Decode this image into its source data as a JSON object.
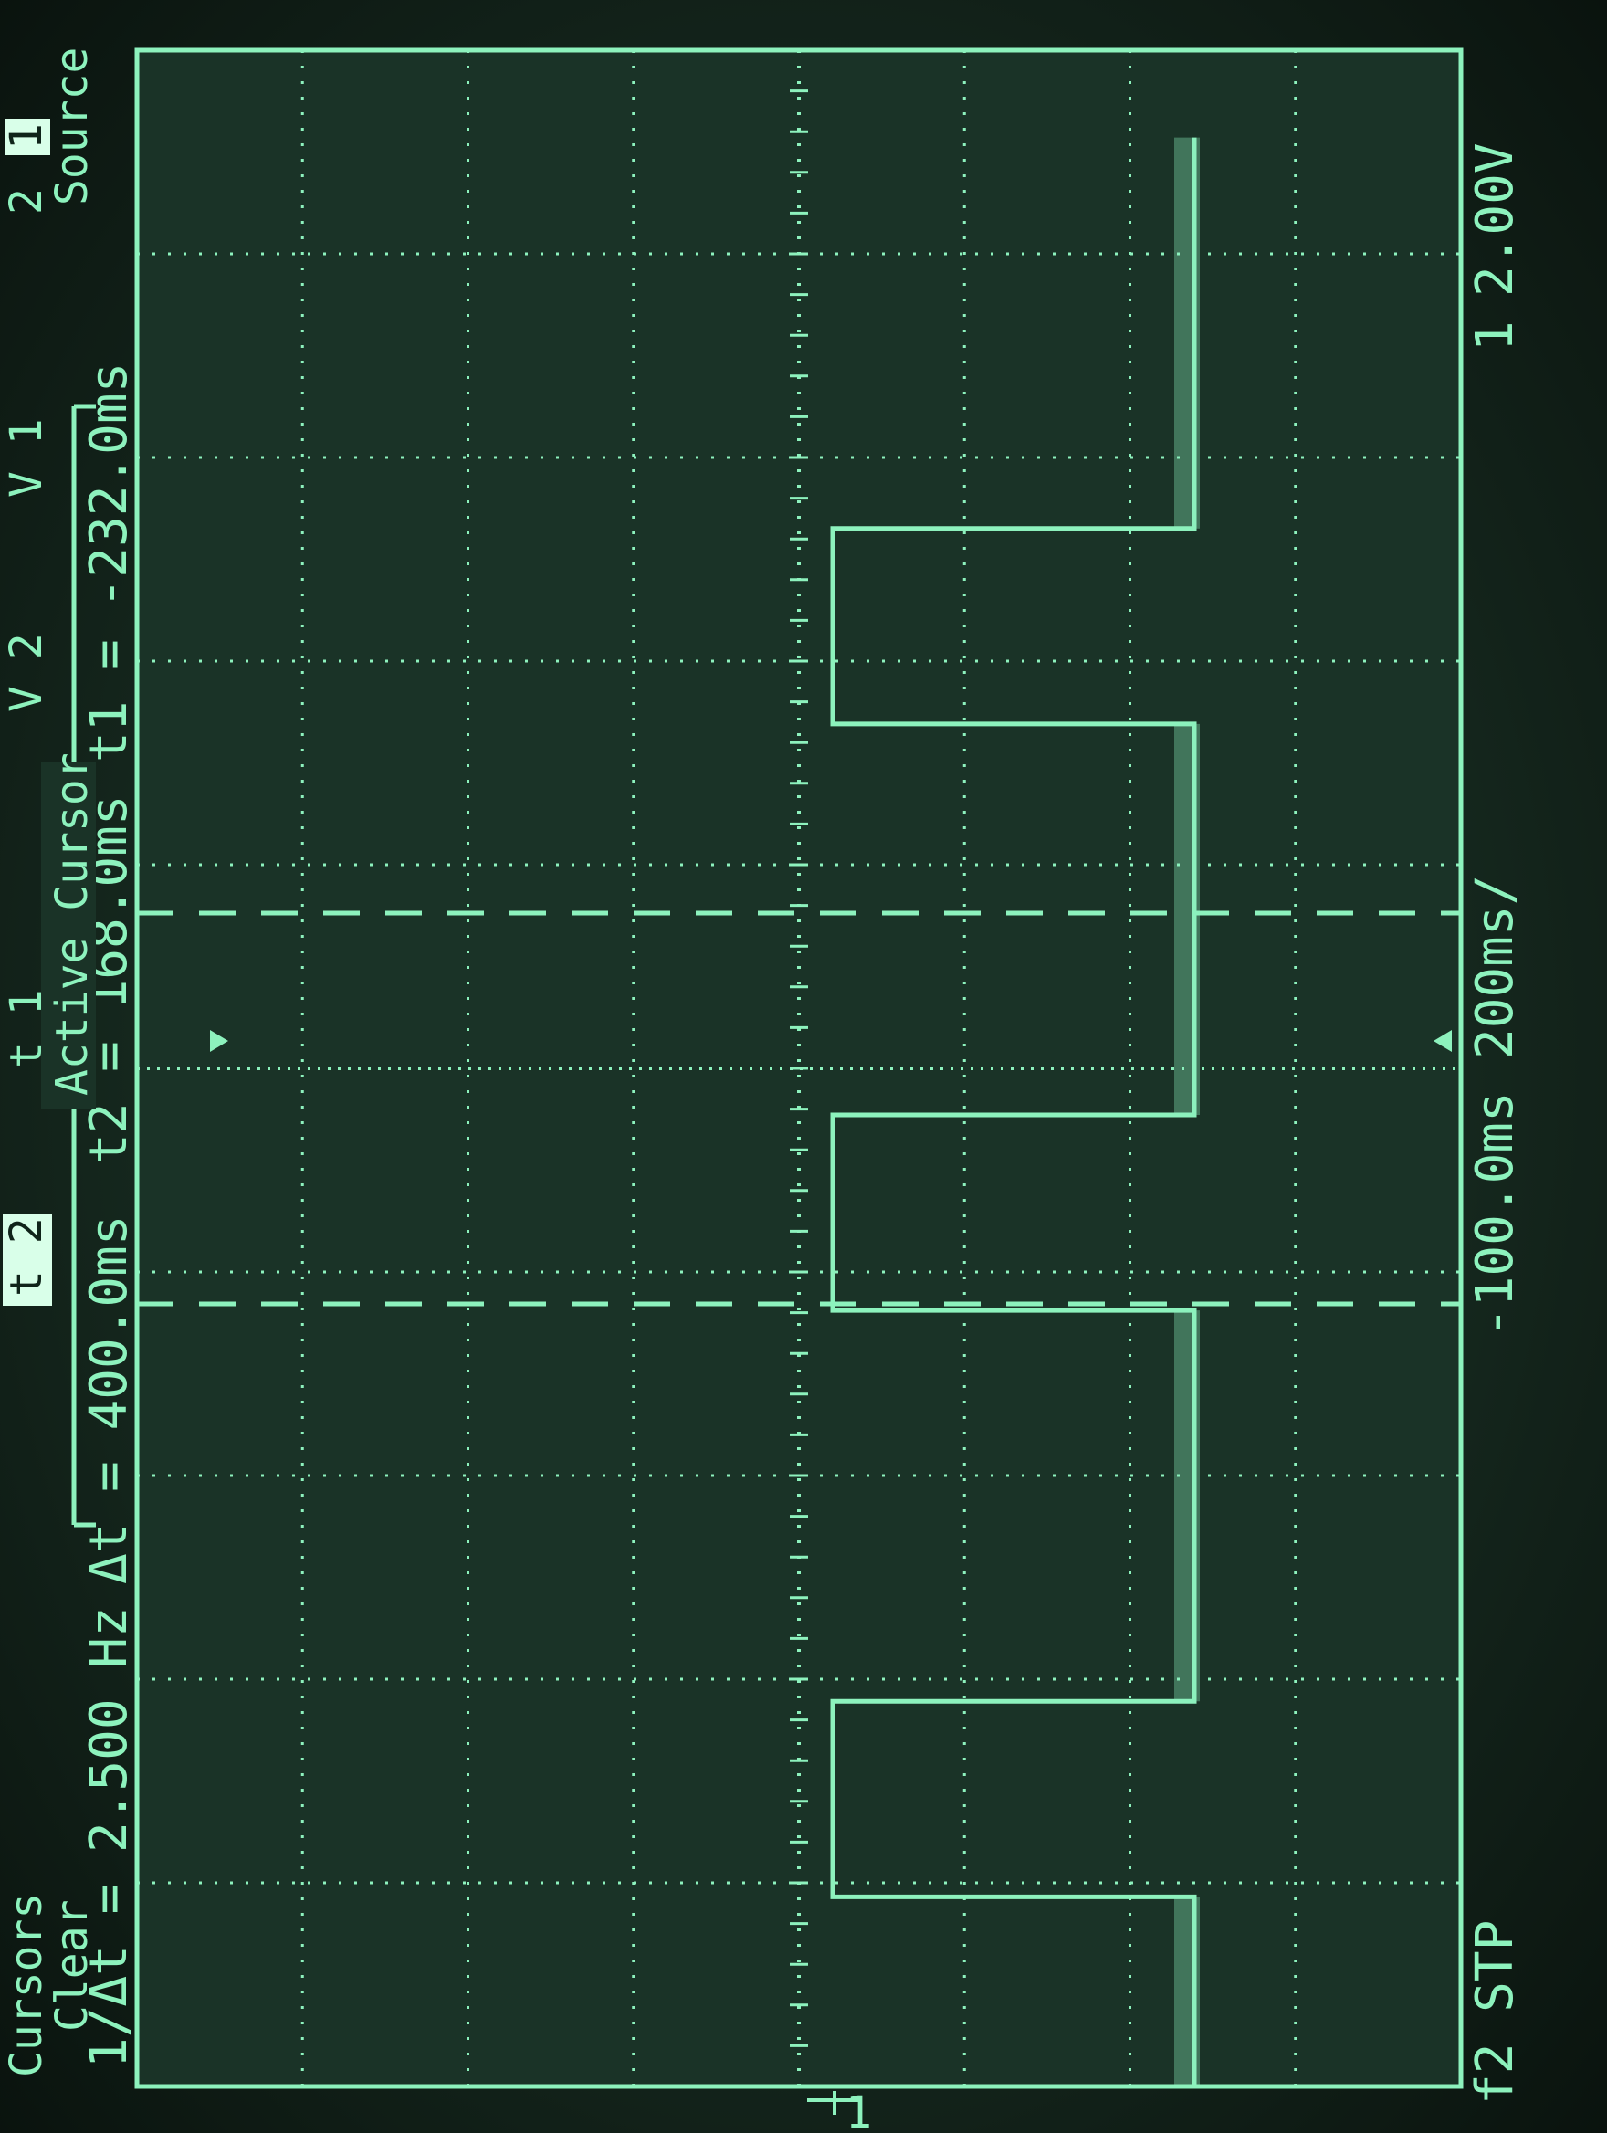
{
  "channel": {
    "number": "1",
    "scale": "2.00V"
  },
  "timebase": {
    "delay": "-100.0ms",
    "scale": "200ms/",
    "trigger_label": "f2 STP"
  },
  "cursors": {
    "t1": "t1 = -232.0ms",
    "t2": "t2 = 168.0ms",
    "delta_t": "Δt = 400.0ms",
    "inv_delta_t": "1/Δt = 2.500 Hz"
  },
  "softkeys": {
    "source_label": "Source",
    "source_ch1": "1",
    "source_ch2": "2",
    "active_cursor_label": "Active Cursor",
    "v1": "V 1",
    "v2": "V 2",
    "t1": "t 1",
    "t2": "t 2",
    "clear_line1": "Clear",
    "clear_line2": "Cursors"
  },
  "ground_marker": "1",
  "colors": {
    "phosphor": "#8df2bd",
    "screen_bg": "#1a3327",
    "highlight": "#d9ffe9"
  },
  "trace": {
    "segments": [
      {
        "from": -0.92,
        "to": -0.52,
        "level": "high"
      },
      {
        "from": -0.52,
        "to": -0.32,
        "level": "low"
      },
      {
        "from": -0.32,
        "to": 0.08,
        "level": "high"
      },
      {
        "from": 0.08,
        "to": 0.28,
        "level": "low"
      },
      {
        "from": 0.28,
        "to": 0.68,
        "level": "high"
      },
      {
        "from": 0.68,
        "to": 0.88,
        "level": "low"
      },
      {
        "from": 0.88,
        "to": 1.08,
        "level": "high"
      }
    ]
  }
}
